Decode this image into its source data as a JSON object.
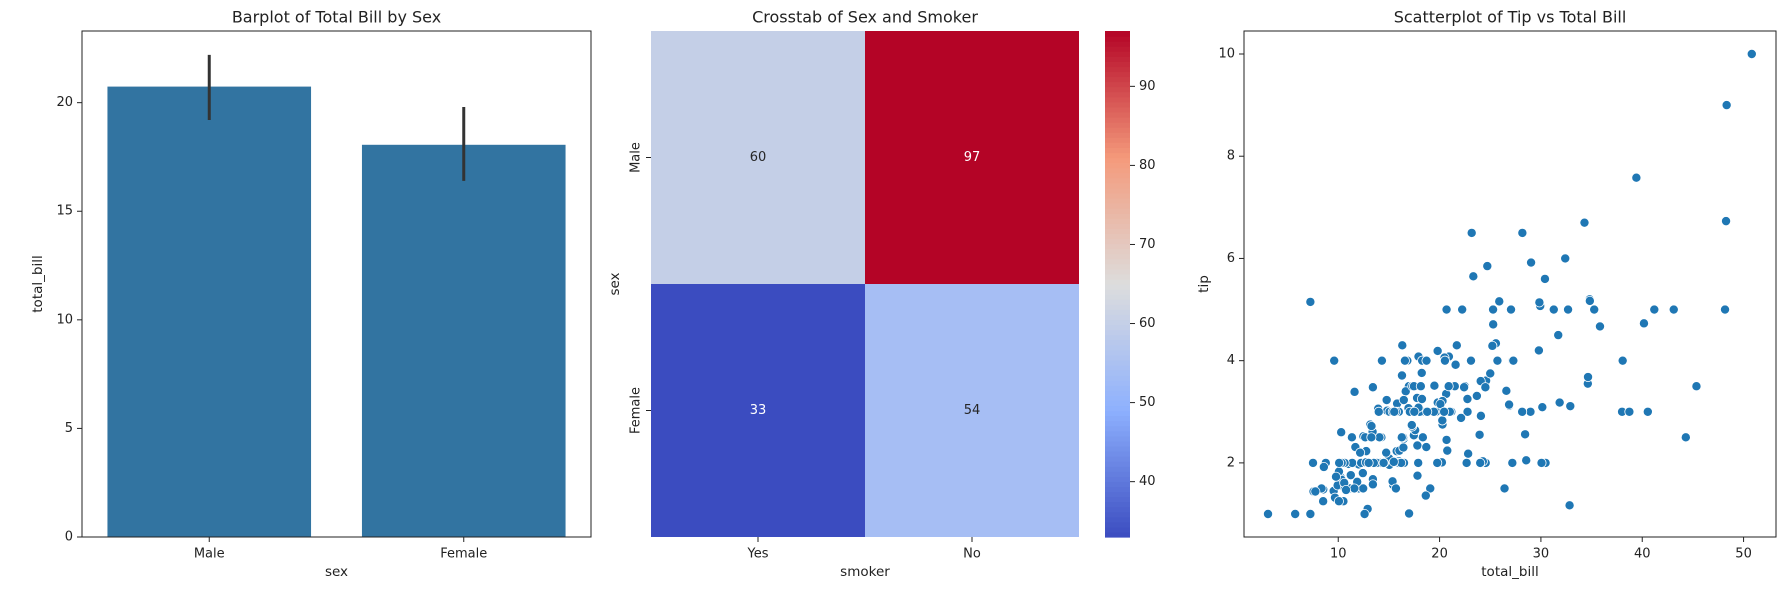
{
  "chart_data": [
    {
      "type": "bar",
      "title": "Barplot of Total Bill by Sex",
      "x_label": "sex",
      "y_label": "total_bill",
      "categories": [
        "Male",
        "Female"
      ],
      "values": [
        20.74,
        18.06
      ],
      "error_low": [
        19.2,
        16.4
      ],
      "error_high": [
        22.2,
        19.8
      ],
      "color": "#3274a1",
      "error_color": "#333333",
      "ylim": [
        0,
        23.3
      ],
      "yticks": [
        0,
        5,
        10,
        15,
        20
      ]
    },
    {
      "type": "heatmap",
      "title": "Crosstab of Sex and Smoker",
      "x_label": "smoker",
      "y_label": "sex",
      "x_categories": [
        "Yes",
        "No"
      ],
      "y_categories": [
        "Male",
        "Female"
      ],
      "values": [
        [
          60,
          97
        ],
        [
          33,
          54
        ]
      ],
      "colormap": "coolwarm",
      "colorbar_lim": [
        33,
        97
      ],
      "colorbar_ticks": [
        40,
        50,
        60,
        70,
        80,
        90
      ]
    },
    {
      "type": "scatter",
      "title": "Scatterplot of Tip vs Total Bill",
      "x_label": "total_bill",
      "y_label": "tip",
      "color": "#1f77b4",
      "xlim": [
        0.7,
        53.2
      ],
      "xticks": [
        10,
        20,
        30,
        40,
        50
      ],
      "ylim": [
        0.55,
        10.45
      ],
      "yticks": [
        2,
        4,
        6,
        8,
        10
      ],
      "x": [
        16.99,
        10.34,
        21.01,
        23.68,
        24.59,
        25.29,
        8.77,
        26.88,
        15.04,
        14.78,
        10.27,
        35.26,
        15.42,
        18.43,
        14.83,
        21.58,
        10.33,
        16.29,
        16.97,
        20.65,
        17.92,
        20.29,
        15.77,
        39.42,
        19.82,
        17.81,
        13.37,
        12.69,
        21.7,
        19.65,
        9.55,
        18.35,
        15.06,
        20.69,
        17.78,
        24.06,
        16.31,
        16.93,
        18.69,
        31.27,
        16.04,
        17.46,
        13.94,
        9.68,
        30.4,
        18.29,
        22.23,
        32.4,
        28.55,
        18.04,
        12.54,
        10.29,
        34.81,
        9.94,
        25.56,
        19.49,
        38.01,
        26.41,
        11.24,
        48.27,
        20.29,
        13.81,
        11.02,
        18.29,
        17.59,
        20.08,
        16.45,
        3.07,
        20.23,
        15.01,
        12.02,
        17.07,
        26.86,
        25.28,
        14.73,
        10.51,
        17.92,
        27.2,
        22.76,
        17.29,
        19.44,
        16.66,
        10.07,
        32.68,
        15.98,
        34.83,
        13.03,
        18.28,
        24.71,
        21.16,
        28.97,
        22.49,
        5.75,
        16.32,
        22.75,
        40.17,
        27.28,
        12.03,
        21.01,
        12.46,
        11.35,
        15.38,
        44.3,
        22.42,
        20.92,
        15.36,
        20.49,
        25.21,
        18.24,
        14.31,
        14.0,
        7.25,
        38.07,
        23.95,
        25.71,
        17.31,
        29.93,
        10.65,
        12.43,
        24.08,
        11.69,
        13.42,
        14.26,
        15.95,
        12.48,
        29.8,
        8.52,
        14.52,
        11.38,
        22.82,
        19.08,
        20.27,
        11.17,
        12.26,
        18.26,
        8.51,
        10.33,
        14.15,
        16.0,
        13.16,
        17.47,
        34.3,
        41.19,
        27.05,
        16.43,
        8.35,
        18.64,
        11.87,
        9.78,
        7.51,
        14.07,
        13.13,
        17.26,
        24.55,
        19.77,
        29.85,
        48.17,
        25.0,
        13.39,
        16.49,
        21.5,
        12.66,
        16.21,
        13.81,
        17.51,
        24.52,
        20.76,
        31.71,
        10.59,
        10.63,
        50.81,
        15.81,
        7.25,
        31.85,
        16.82,
        32.9,
        17.89,
        14.48,
        9.6,
        34.63,
        34.65,
        23.33,
        45.35,
        23.17,
        40.55,
        20.69,
        20.9,
        30.46,
        18.15,
        23.1,
        15.69,
        19.81,
        28.44,
        15.48,
        16.58,
        7.56,
        10.34,
        43.11,
        13.0,
        13.51,
        18.71,
        12.74,
        13.0,
        16.4,
        20.53,
        16.47,
        26.59,
        38.73,
        24.27,
        12.76,
        30.06,
        25.89,
        48.33,
        13.27,
        28.17,
        12.9,
        28.15,
        11.59,
        7.74,
        30.14,
        12.16,
        13.42,
        8.58,
        15.98,
        13.42,
        16.27,
        10.09,
        20.45,
        13.28,
        22.12,
        24.01,
        15.69,
        11.61,
        10.77,
        15.53,
        10.07,
        12.6,
        32.83,
        35.83,
        29.03,
        27.18,
        22.67,
        17.82,
        18.78
      ],
      "values": [
        1.01,
        1.66,
        3.5,
        3.31,
        3.61,
        4.71,
        2.0,
        3.12,
        1.96,
        3.23,
        1.71,
        5.0,
        1.57,
        3.0,
        3.02,
        3.92,
        1.67,
        3.71,
        3.5,
        3.35,
        4.08,
        2.75,
        2.23,
        7.58,
        3.18,
        2.34,
        2.0,
        2.0,
        4.3,
        3.0,
        1.45,
        2.5,
        3.0,
        2.45,
        3.27,
        3.6,
        2.0,
        3.07,
        2.31,
        5.0,
        2.24,
        2.54,
        3.06,
        1.32,
        5.6,
        3.0,
        5.0,
        6.0,
        2.05,
        3.0,
        2.5,
        2.6,
        5.2,
        1.56,
        4.34,
        3.51,
        3.0,
        1.5,
        1.76,
        6.73,
        3.21,
        2.0,
        1.98,
        3.76,
        2.64,
        3.15,
        2.47,
        1.0,
        2.01,
        2.09,
        1.97,
        3.0,
        3.14,
        5.0,
        2.2,
        1.25,
        3.08,
        4.0,
        3.0,
        2.71,
        3.0,
        3.4,
        1.83,
        5.0,
        2.03,
        5.17,
        2.0,
        4.0,
        5.85,
        3.0,
        3.0,
        3.5,
        1.0,
        4.3,
        3.25,
        4.73,
        4.0,
        1.5,
        3.0,
        1.5,
        2.5,
        3.0,
        2.5,
        3.48,
        4.08,
        1.64,
        4.06,
        4.29,
        3.76,
        4.0,
        3.0,
        1.0,
        4.0,
        2.55,
        4.0,
        3.5,
        5.07,
        1.5,
        1.8,
        2.92,
        2.31,
        1.68,
        2.5,
        2.0,
        2.52,
        4.2,
        1.48,
        2.0,
        2.0,
        2.18,
        1.5,
        2.83,
        1.5,
        2.0,
        3.25,
        1.25,
        2.0,
        2.0,
        2.0,
        2.75,
        3.5,
        6.7,
        5.0,
        5.0,
        2.3,
        1.5,
        1.36,
        1.63,
        1.73,
        2.0,
        2.5,
        2.0,
        2.74,
        2.0,
        2.0,
        5.14,
        5.0,
        3.75,
        2.61,
        2.0,
        3.5,
        2.5,
        2.0,
        2.0,
        3.0,
        3.48,
        2.24,
        4.5,
        1.61,
        2.0,
        10.0,
        3.16,
        5.15,
        3.18,
        4.0,
        3.11,
        2.0,
        2.0,
        4.0,
        3.55,
        3.68,
        5.65,
        3.5,
        6.5,
        3.0,
        5.0,
        3.5,
        2.0,
        3.5,
        4.0,
        1.5,
        4.19,
        2.56,
        2.02,
        4.0,
        1.44,
        2.0,
        5.0,
        2.0,
        2.0,
        4.0,
        2.01,
        2.0,
        2.5,
        4.0,
        3.23,
        3.41,
        3.0,
        2.03,
        2.23,
        2.0,
        5.16,
        9.0,
        2.5,
        6.5,
        1.1,
        3.0,
        1.5,
        1.44,
        3.09,
        2.2,
        3.48,
        1.92,
        3.0,
        1.58,
        2.5,
        2.0,
        3.0,
        2.72,
        2.88,
        2.0,
        3.0,
        3.39,
        1.47,
        3.0,
        1.25,
        1.0,
        1.17,
        4.67,
        5.92,
        2.0,
        2.0,
        1.75,
        3.0
      ]
    }
  ]
}
